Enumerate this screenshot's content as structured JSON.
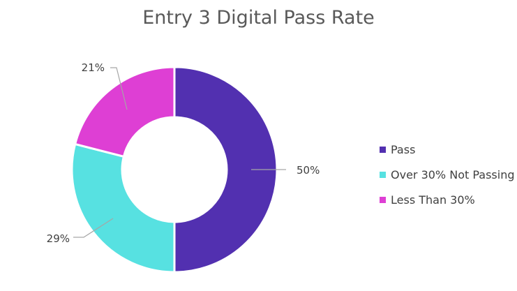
{
  "chart_data": {
    "type": "pie",
    "title": "Entry 3 Digital Pass Rate",
    "categories": [
      "Pass",
      "Over 30% Not Passing",
      "Less Than 30%"
    ],
    "values": [
      50,
      29,
      21
    ],
    "labels": [
      "50%",
      "29%",
      "21%"
    ],
    "colors": [
      "#5230b0",
      "#57e1e1",
      "#de3fd4"
    ],
    "hole": true,
    "legend_position": "right"
  }
}
